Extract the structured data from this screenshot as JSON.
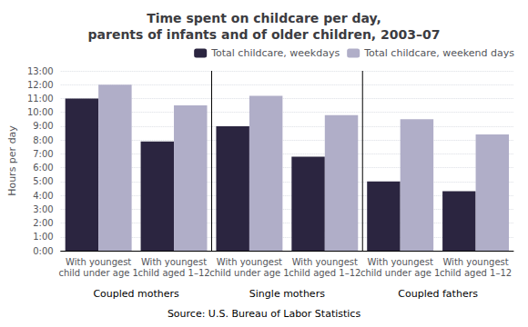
{
  "chart_data": {
    "type": "bar",
    "title": "Time spent on childcare per day,\nparents of infants and of older children, 2003–07",
    "ylabel": "Hours per day",
    "annotations": [
      "Source: U.S. Bureau of Labor Statistics"
    ],
    "groups": [
      "Coupled mothers",
      "Single mothers",
      "Coupled fathers"
    ],
    "categories": [
      "With youngest\nchild under age 1",
      "With youngest\nchild aged 1–12",
      "With youngest\nchild under age 1",
      "With youngest\nchild aged 1–12",
      "With youngest\nchild under age 1",
      "With youngest\nchild aged 1–12"
    ],
    "series": [
      {
        "name": "Total childcare, weekdays",
        "color": "#2b2540",
        "values": [
          11.0,
          7.9,
          9.0,
          6.8,
          5.0,
          4.3
        ]
      },
      {
        "name": "Total childcare, weekend days",
        "color": "#b0aec8",
        "values": [
          12.0,
          10.5,
          11.2,
          9.8,
          9.5,
          8.4
        ]
      }
    ],
    "ylim": [
      0,
      13
    ],
    "yticks": [
      {
        "value": 0,
        "label": "0:00"
      },
      {
        "value": 1,
        "label": "1:00"
      },
      {
        "value": 2,
        "label": "2:00"
      },
      {
        "value": 3,
        "label": "3:00"
      },
      {
        "value": 4,
        "label": "4:00"
      },
      {
        "value": 5,
        "label": "5:00"
      },
      {
        "value": 6,
        "label": "6:00"
      },
      {
        "value": 7,
        "label": "7:00"
      },
      {
        "value": 8,
        "label": "8:00"
      },
      {
        "value": 9,
        "label": "9:00"
      },
      {
        "value": 10,
        "label": "10:00"
      },
      {
        "value": 11,
        "label": "11:00"
      },
      {
        "value": 12,
        "label": "12:00"
      },
      {
        "value": 13,
        "label": "13:00"
      }
    ],
    "grid": true,
    "legend": "upper right"
  }
}
